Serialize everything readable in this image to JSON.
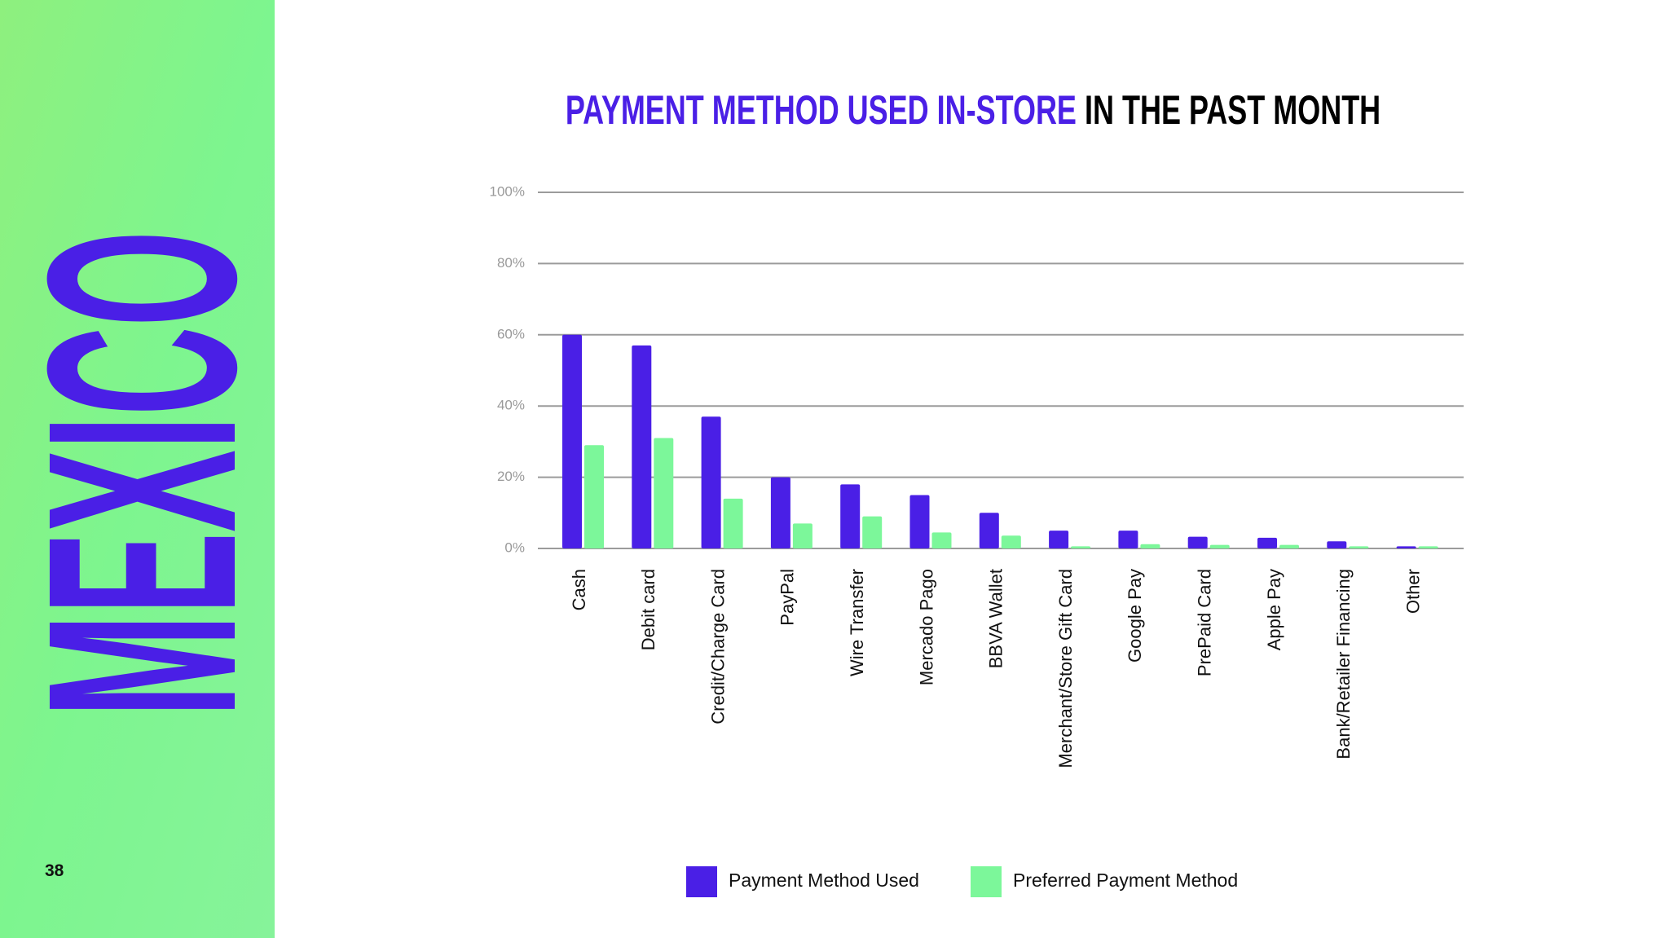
{
  "sidebar": {
    "label": "MEXICO",
    "page_number": 38
  },
  "chart_data": {
    "type": "bar",
    "title": {
      "highlight": "PAYMENT METHOD USED IN-STORE",
      "rest": "IN THE PAST MONTH"
    },
    "categories": [
      "Cash",
      "Debit card",
      "Credit/Charge Card",
      "PayPal",
      "Wire Transfer",
      "Mercado Pago",
      "BBVA Wallet",
      "Merchant/Store Gift Card",
      "Google Pay",
      "PrePaid Card",
      "Apple Pay",
      "Bank/Retailer Financing",
      "Other"
    ],
    "series": [
      {
        "name": "Payment Method Used",
        "color": "#4a1fe6",
        "values": [
          60,
          57,
          37,
          20,
          18,
          15,
          10,
          5,
          5,
          3.3,
          3,
          2,
          0.6
        ]
      },
      {
        "name": "Preferred Payment Method",
        "color": "#7cf79a",
        "values": [
          29,
          31,
          14,
          7,
          9,
          4.5,
          3.6,
          0.6,
          1.2,
          1,
          1,
          0.6,
          0.6
        ]
      }
    ],
    "ylim": [
      0,
      100
    ],
    "yticks": [
      {
        "value": 0,
        "label": "0%"
      },
      {
        "value": 20,
        "label": "20%"
      },
      {
        "value": 40,
        "label": "40%"
      },
      {
        "value": 60,
        "label": "60%"
      },
      {
        "value": 80,
        "label": "80%"
      },
      {
        "value": 100,
        "label": "100%"
      }
    ],
    "grid": true,
    "legend": "bottom"
  }
}
